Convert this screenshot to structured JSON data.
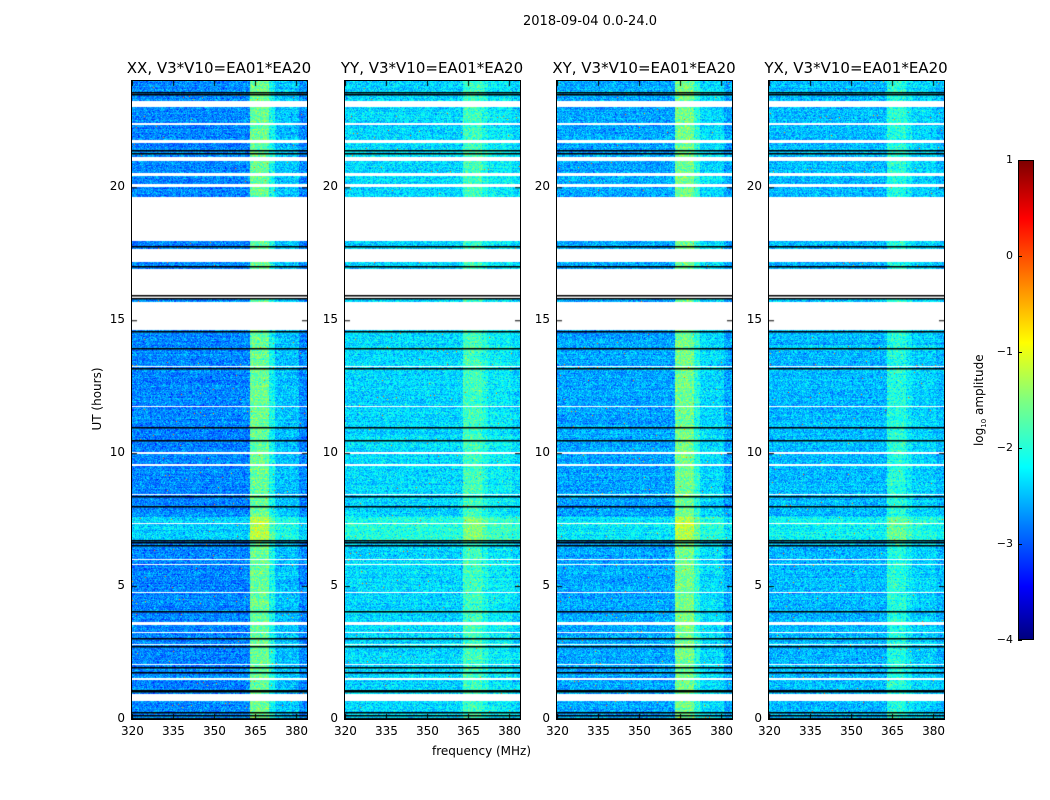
{
  "chart_data": {
    "type": "heatmap",
    "title": "2018-09-04 0.0-24.0",
    "xlabel": "frequency (MHz)",
    "ylabel": "UT (hours)",
    "xlim": [
      320,
      384
    ],
    "ylim": [
      0,
      24
    ],
    "xticks": [
      "320",
      "335",
      "350",
      "365",
      "380"
    ],
    "xtick_values": [
      320,
      335,
      350,
      365,
      380
    ],
    "yticks": [
      "0",
      "5",
      "10",
      "15",
      "20"
    ],
    "ytick_values": [
      0,
      5,
      10,
      15,
      20
    ],
    "panels": [
      {
        "title": "XX, V3*V10=EA01*EA20",
        "base_level": -2.7,
        "rfi_boost": 1.0
      },
      {
        "title": "YY, V3*V10=EA01*EA20",
        "base_level": -2.3,
        "rfi_boost": 0.45
      },
      {
        "title": "XY, V3*V10=EA01*EA20",
        "base_level": -2.55,
        "rfi_boost": 0.9
      },
      {
        "title": "YX, V3*V10=EA01*EA20",
        "base_level": -2.45,
        "rfi_boost": 0.45
      }
    ],
    "rfi_band_mhz": [
      363,
      372
    ],
    "flagged_hours": [
      [
        23.25,
        23.05
      ],
      [
        22.45,
        22.35
      ],
      [
        21.8,
        21.7
      ],
      [
        21.15,
        21.0
      ],
      [
        20.55,
        20.45
      ],
      [
        20.15,
        20.05
      ],
      [
        19.65,
        18.0
      ],
      [
        17.7,
        17.2
      ],
      [
        16.95,
        15.8
      ],
      [
        15.7,
        14.65
      ],
      [
        13.3,
        13.25
      ],
      [
        11.8,
        11.75
      ],
      [
        10.05,
        10.0
      ],
      [
        9.6,
        9.55
      ],
      [
        8.5,
        8.45
      ],
      [
        7.4,
        7.35
      ],
      [
        6.05,
        6.0
      ],
      [
        5.85,
        5.8
      ],
      [
        4.8,
        4.75
      ],
      [
        3.65,
        3.55
      ],
      [
        3.3,
        3.25
      ],
      [
        2.85,
        2.8
      ],
      [
        2.1,
        2.05
      ],
      [
        1.55,
        1.5
      ],
      [
        0.95,
        0.7
      ]
    ],
    "black_lines_hours": [
      23.6,
      23.5,
      21.4,
      21.3,
      17.8,
      17.05,
      15.95,
      15.85,
      14.6,
      13.95,
      13.2,
      11.0,
      10.5,
      8.4,
      8.0,
      6.75,
      6.65,
      6.55,
      4.05,
      3.05,
      2.75,
      1.95,
      1.75,
      1.1,
      1.05,
      0.25,
      0.15,
      0.05
    ],
    "colorbar": {
      "label": "log10 amplitude",
      "label_main": "log",
      "label_sub": "10",
      "label_rest": " amplitude",
      "range": [
        -4,
        1
      ],
      "ticks": [
        "1",
        "0",
        "−1",
        "−2",
        "−3",
        "−4"
      ],
      "colormap": "jet"
    }
  }
}
